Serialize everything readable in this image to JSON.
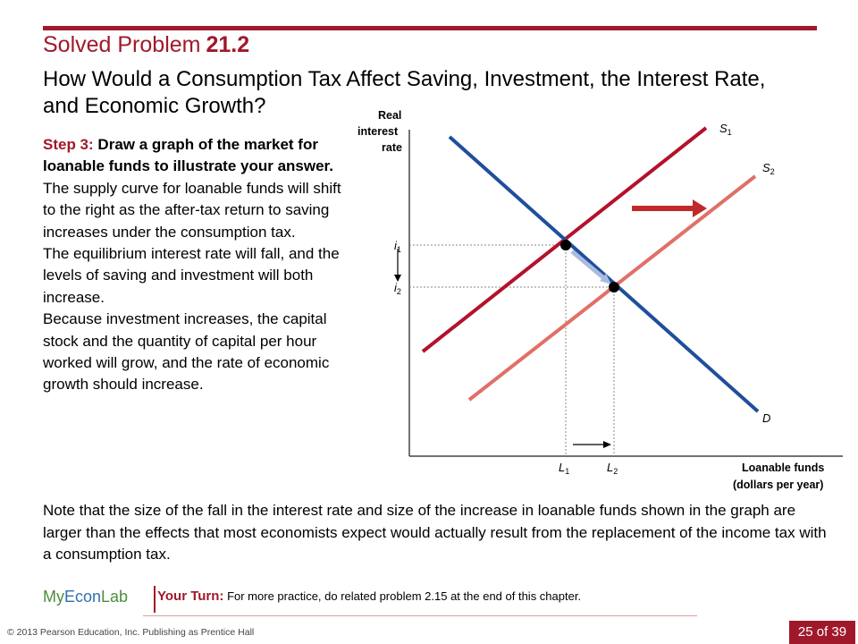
{
  "slide": {
    "title_prefix": "Solved Problem",
    "title_number": "21.2",
    "subtitle": "How Would a Consumption Tax Affect Saving, Investment, the Interest Rate, and Economic Growth?"
  },
  "step": {
    "label": "Step 3:",
    "heading": "Draw a graph of the market for loanable funds to illustrate your answer.",
    "para1": "The supply curve for loanable funds will shift to the right as the after-tax return to saving increases under the consumption tax.",
    "para2": "The equilibrium interest rate will fall, and the levels of saving and investment will both increase.",
    "para3": "Because investment increases, the capital stock and the quantity of capital per hour worked will grow, and the rate of economic growth should increase."
  },
  "note": "Note that the size of the fall in the interest rate and size of the increase in loanable funds shown in the graph are larger than the effects that most economists expect would actually result from the replacement of the income tax with a consumption tax.",
  "graph": {
    "y_axis_label": [
      "Real",
      "interest",
      "rate"
    ],
    "x_axis_label": [
      "Loanable funds",
      "(dollars per year)"
    ],
    "s1": {
      "main": "S",
      "sub": "1"
    },
    "s2": {
      "main": "S",
      "sub": "2"
    },
    "demand": "D",
    "i1": {
      "main": "i",
      "sub": "1"
    },
    "i2": {
      "main": "i",
      "sub": "2"
    },
    "l1": {
      "main": "L",
      "sub": "1"
    },
    "l2": {
      "main": "L",
      "sub": "2"
    },
    "colors": {
      "s1": "#b3122b",
      "s2": "#e07068",
      "demand": "#1f4e9c",
      "arrow": "#c02a2a"
    }
  },
  "brand": {
    "my": "My",
    "econ": "Econ",
    "lab": "Lab"
  },
  "your_turn": {
    "label": "Your Turn:",
    "text": "For more practice, do related problem 2.15 at the end of this chapter."
  },
  "footer": {
    "copyright": "© 2013 Pearson Education, Inc. Publishing as Prentice Hall",
    "page": "25 of 39"
  }
}
